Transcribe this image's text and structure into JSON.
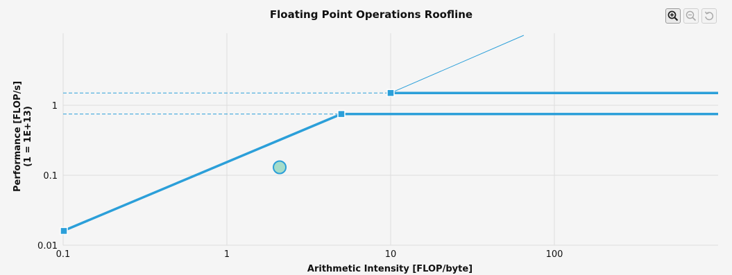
{
  "chart_data": {
    "type": "line",
    "title": "Floating Point Operations Roofline",
    "xlabel": "Arithmetic Intensity [FLOP/byte]",
    "ylabel": "Performance [FLOP/s]",
    "ylabel_sub": "(1 = 1E+13)",
    "xscale": "log",
    "yscale": "log",
    "xlim": [
      0.1,
      900
    ],
    "ylim": [
      0.01,
      10
    ],
    "xticks": [
      {
        "v": 0.1,
        "label": "0.1"
      },
      {
        "v": 1,
        "label": "1"
      },
      {
        "v": 10,
        "label": "10"
      },
      {
        "v": 100,
        "label": "100"
      }
    ],
    "yticks": [
      {
        "v": 0.01,
        "label": "0.01"
      },
      {
        "v": 0.1,
        "label": "0.1"
      },
      {
        "v": 1,
        "label": "1"
      }
    ],
    "grid": true,
    "roofs": [
      {
        "ridge": [
          10,
          1.5
        ],
        "bandwidth_line": false
      },
      {
        "ridge": [
          5,
          0.75
        ],
        "bandwidth_line": true,
        "start": [
          0.1,
          0.016
        ]
      }
    ],
    "diagonal_extension": {
      "from": [
        10,
        1.5
      ],
      "to": [
        65,
        10
      ]
    },
    "point": {
      "x": 2.1,
      "y": 0.13
    },
    "colors": {
      "line": "#2b9fd9",
      "point_fill": "#a5dcc9",
      "point_stroke": "#2b9fd9"
    }
  },
  "toolbar": {
    "icons": [
      "zoom-in-icon",
      "zoom-out-icon",
      "reset-icon"
    ]
  }
}
